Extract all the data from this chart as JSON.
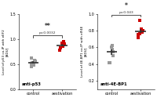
{
  "panel1": {
    "title": "anti-p53",
    "ylabel": "Level of p53 co-IP with eEF2\n[ADU]",
    "ylim": [
      0.0,
      1.5
    ],
    "yticks": [
      0.0,
      0.5,
      1.0,
      1.5
    ],
    "control_points": [
      0.52,
      0.55,
      0.58,
      0.48,
      0.5,
      0.62,
      0.45
    ],
    "aestivation_points": [
      0.88,
      0.92,
      0.85,
      0.78,
      0.9,
      0.95,
      0.82
    ],
    "pvalue": "p=0.0032",
    "stars": "**",
    "xtick_labels": [
      "control",
      "aestivation"
    ]
  },
  "panel2": {
    "title": "anti-4E-BP1",
    "ylabel": "Level of 4E-BP1 co-IP with eIF4E\n[ADU]",
    "ylim": [
      0.1,
      1.0
    ],
    "yticks": [
      0.2,
      0.4,
      0.6,
      0.8,
      1.0
    ],
    "control_points": [
      0.57,
      0.6,
      0.55,
      0.42,
      0.5,
      0.62
    ],
    "aestivation_points": [
      0.92,
      0.75,
      0.8,
      0.72,
      0.78,
      0.82,
      0.76
    ],
    "pvalue": "p=0.043",
    "stars": "*",
    "xtick_labels": [
      "control",
      "aestivation"
    ]
  },
  "control_color": "#999999",
  "aestivation_color": "#cc0000",
  "background_color": "#ffffff",
  "marker": "s",
  "markersize": 3,
  "mean_line_lw": 1.2,
  "bracket_color": "#333333"
}
